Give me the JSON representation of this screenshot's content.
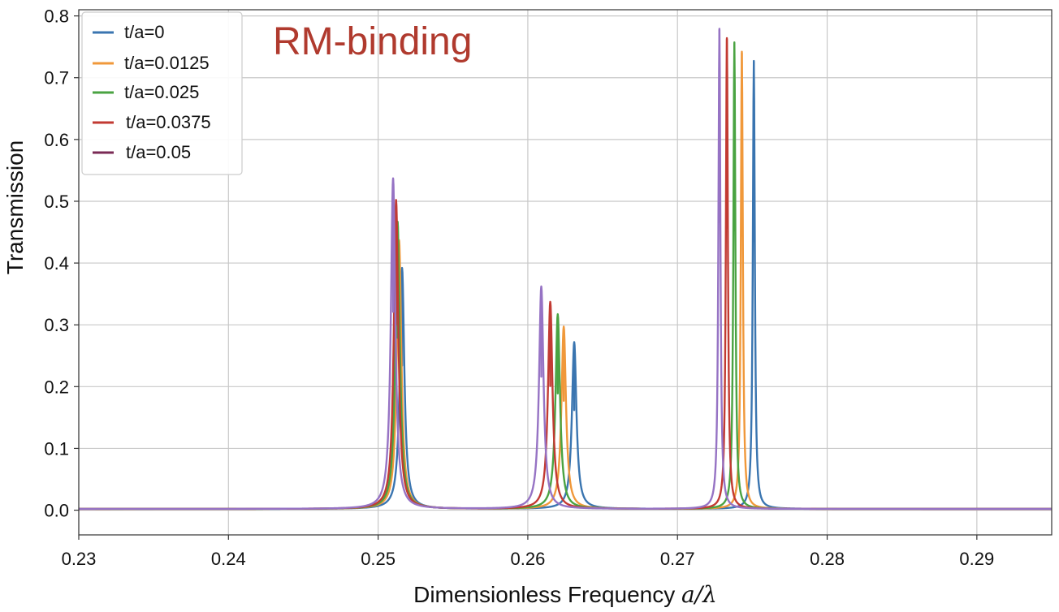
{
  "chart_data": {
    "type": "line",
    "title": "",
    "annotation": "RM-binding",
    "annotation_color": "#b03a2e",
    "xlabel_text": "Dimensionless Frequency ",
    "xlabel_math": "a/λ",
    "ylabel": "Transmission",
    "xlim": [
      0.23,
      0.295
    ],
    "ylim": [
      -0.04,
      0.81
    ],
    "xticks": [
      0.23,
      0.24,
      0.25,
      0.26,
      0.27,
      0.28,
      0.29
    ],
    "xtick_labels": [
      "0.23",
      "0.24",
      "0.25",
      "0.26",
      "0.27",
      "0.28",
      "0.29"
    ],
    "yticks": [
      0.0,
      0.1,
      0.2,
      0.3,
      0.4,
      0.5,
      0.6,
      0.7,
      0.8
    ],
    "ytick_labels": [
      "0.0",
      "0.1",
      "0.2",
      "0.3",
      "0.4",
      "0.5",
      "0.6",
      "0.7",
      "0.8"
    ],
    "grid": true,
    "legend_position": "top-left",
    "baseline": 0.002,
    "series": [
      {
        "name": "t/a=0",
        "color": "#3a75b0",
        "peaks": [
          {
            "x": 0.2516,
            "y": 0.39,
            "width": 0.00018
          },
          {
            "x": 0.2631,
            "y": 0.27,
            "width": 0.00018
          },
          {
            "x": 0.2751,
            "y": 0.725,
            "width": 8e-05
          }
        ]
      },
      {
        "name": "t/a=0.0125",
        "color": "#f0983a",
        "peaks": [
          {
            "x": 0.2514,
            "y": 0.435,
            "width": 0.00018
          },
          {
            "x": 0.2624,
            "y": 0.295,
            "width": 0.00018
          },
          {
            "x": 0.2743,
            "y": 0.74,
            "width": 8e-05
          }
        ]
      },
      {
        "name": "t/a=0.025",
        "color": "#4aa342",
        "peaks": [
          {
            "x": 0.2513,
            "y": 0.465,
            "width": 0.00018
          },
          {
            "x": 0.262,
            "y": 0.315,
            "width": 0.00018
          },
          {
            "x": 0.2738,
            "y": 0.755,
            "width": 8e-05
          }
        ]
      },
      {
        "name": "t/a=0.0375",
        "color": "#c23a32",
        "peaks": [
          {
            "x": 0.2512,
            "y": 0.5,
            "width": 0.00018
          },
          {
            "x": 0.2615,
            "y": 0.335,
            "width": 0.00018
          },
          {
            "x": 0.2733,
            "y": 0.762,
            "width": 8e-05
          }
        ]
      },
      {
        "name": "t/a=0.05",
        "color": "#9673c4",
        "legend_color": "#7a2a55",
        "peaks": [
          {
            "x": 0.251,
            "y": 0.535,
            "width": 0.00018
          },
          {
            "x": 0.2609,
            "y": 0.36,
            "width": 0.00018
          },
          {
            "x": 0.2728,
            "y": 0.777,
            "width": 8e-05
          }
        ]
      }
    ]
  }
}
